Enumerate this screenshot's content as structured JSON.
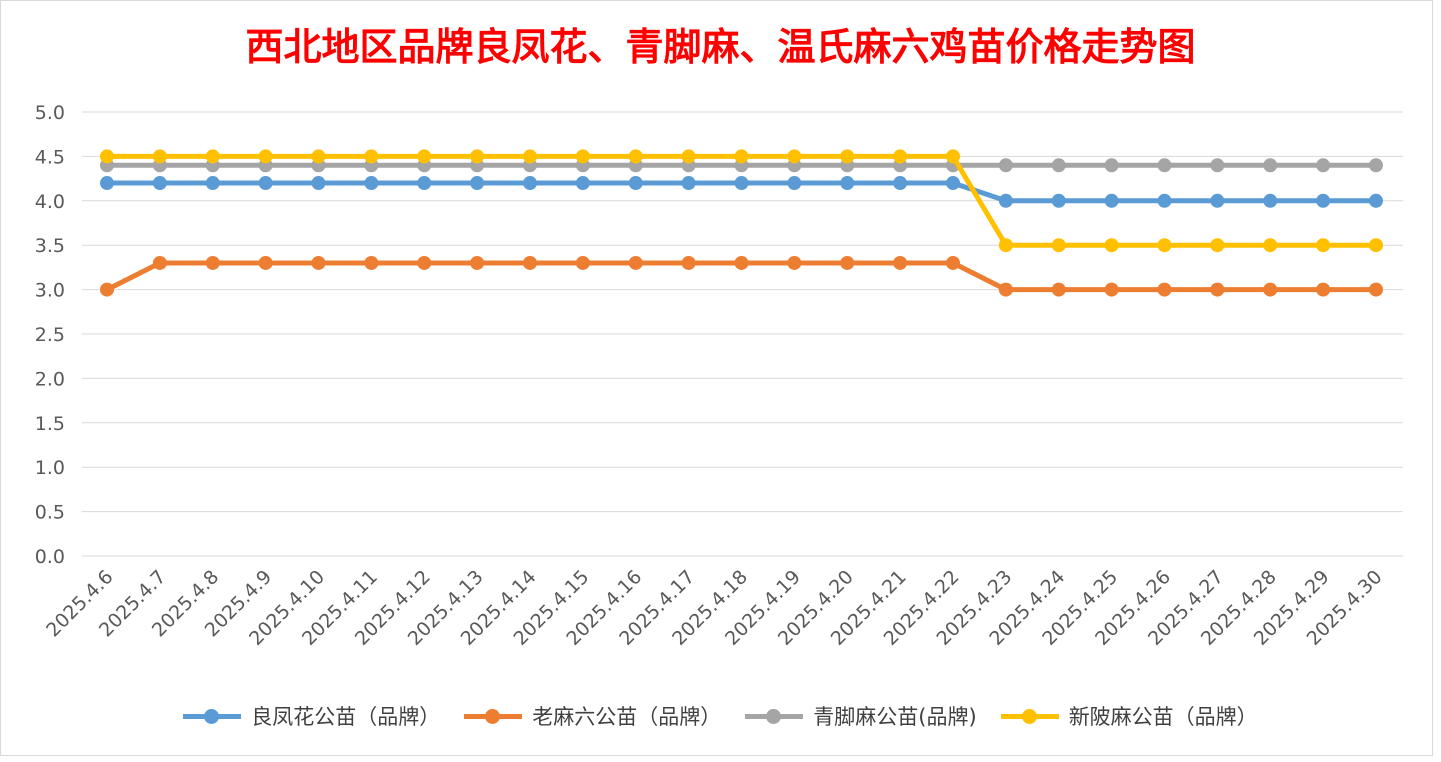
{
  "chart_data": {
    "type": "line",
    "title": "西北地区品牌良凤花、青脚麻、温氏麻六鸡苗价格走势图",
    "xlabel": "",
    "ylabel": "",
    "ylim": [
      0,
      5
    ],
    "y_ticks": [
      "0.0",
      "0.5",
      "1.0",
      "1.5",
      "2.0",
      "2.5",
      "3.0",
      "3.5",
      "4.0",
      "4.5",
      "5.0"
    ],
    "grid": true,
    "legend_position": "bottom",
    "categories": [
      "2025.4.6",
      "2025.4.7",
      "2025.4.8",
      "2025.4.9",
      "2025.4.10",
      "2025.4.11",
      "2025.4.12",
      "2025.4.13",
      "2025.4.14",
      "2025.4.15",
      "2025.4.16",
      "2025.4.17",
      "2025.4.18",
      "2025.4.19",
      "2025.4.20",
      "2025.4.21",
      "2025.4.22",
      "2025.4.23",
      "2025.4.24",
      "2025.4.25",
      "2025.4.26",
      "2025.4.27",
      "2025.4.28",
      "2025.4.29",
      "2025.4.30"
    ],
    "series": [
      {
        "name": "良凤花公苗（品牌）",
        "color": "#5B9BD5",
        "values": [
          4.2,
          4.2,
          4.2,
          4.2,
          4.2,
          4.2,
          4.2,
          4.2,
          4.2,
          4.2,
          4.2,
          4.2,
          4.2,
          4.2,
          4.2,
          4.2,
          4.2,
          4.0,
          4.0,
          4.0,
          4.0,
          4.0,
          4.0,
          4.0,
          4.0
        ]
      },
      {
        "name": "老麻六公苗（品牌）",
        "color": "#ED7D31",
        "values": [
          3.0,
          3.3,
          3.3,
          3.3,
          3.3,
          3.3,
          3.3,
          3.3,
          3.3,
          3.3,
          3.3,
          3.3,
          3.3,
          3.3,
          3.3,
          3.3,
          3.3,
          3.0,
          3.0,
          3.0,
          3.0,
          3.0,
          3.0,
          3.0,
          3.0
        ]
      },
      {
        "name": "青脚麻公苗(品牌)",
        "color": "#A5A5A5",
        "values": [
          4.4,
          4.4,
          4.4,
          4.4,
          4.4,
          4.4,
          4.4,
          4.4,
          4.4,
          4.4,
          4.4,
          4.4,
          4.4,
          4.4,
          4.4,
          4.4,
          4.4,
          4.4,
          4.4,
          4.4,
          4.4,
          4.4,
          4.4,
          4.4,
          4.4
        ]
      },
      {
        "name": "新陂麻公苗（品牌）",
        "color": "#FFC000",
        "values": [
          4.5,
          4.5,
          4.5,
          4.5,
          4.5,
          4.5,
          4.5,
          4.5,
          4.5,
          4.5,
          4.5,
          4.5,
          4.5,
          4.5,
          4.5,
          4.5,
          4.5,
          3.5,
          3.5,
          3.5,
          3.5,
          3.5,
          3.5,
          3.5,
          3.5
        ]
      }
    ]
  }
}
